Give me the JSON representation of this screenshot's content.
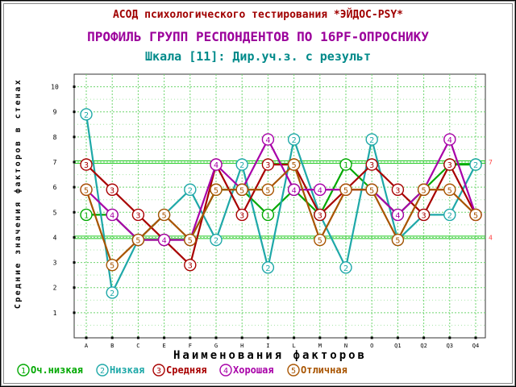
{
  "header": {
    "app_title": "АСОД психологического тестирования *ЭЙДОС-PSY*",
    "chart_title": "ПРОФИЛЬ ГРУПП РЕСПОНДЕНТОВ ПО 16PF-ОПРОСНИКУ",
    "scale_subtitle": "Шкала [11]: Дир.уч.з. с результ"
  },
  "colors": {
    "title": "#a00000",
    "subtitle": "#9b009b",
    "scale": "#008a8a",
    "gridline": "#6fd56f",
    "norm_line": "#22cc22",
    "norm_label": "#ff4040"
  },
  "chart_data": {
    "type": "line",
    "categories": [
      "A",
      "B",
      "C",
      "E",
      "F",
      "G",
      "H",
      "I",
      "L",
      "M",
      "N",
      "O",
      "Q1",
      "Q2",
      "Q3",
      "Q4"
    ],
    "xlabel": "Наименования факторов",
    "ylabel": "Средние значения факторов в стенах",
    "ylim": [
      0,
      10.5
    ],
    "yticks": [
      1,
      2,
      3,
      4,
      5,
      6,
      7,
      8,
      9,
      10
    ],
    "grid": true,
    "reference_lines": [
      {
        "value": 7,
        "label": "7"
      },
      {
        "value": 4,
        "label": "4"
      }
    ],
    "legend_position": "bottom",
    "series": [
      {
        "marker": "1",
        "name": "Оч.низкая",
        "color": "#00a800",
        "values": [
          4.9,
          4.9,
          3.9,
          3.9,
          3.9,
          5.9,
          5.9,
          4.9,
          5.9,
          4.9,
          6.9,
          5.9,
          4.9,
          5.9,
          6.9,
          6.9
        ]
      },
      {
        "marker": "2",
        "name": "Низкая",
        "color": "#1ea8a8",
        "values": [
          8.9,
          1.8,
          3.9,
          4.9,
          5.9,
          3.9,
          6.9,
          2.8,
          7.9,
          4.9,
          2.8,
          7.9,
          3.9,
          4.9,
          4.9,
          6.9
        ]
      },
      {
        "marker": "3",
        "name": "Средняя",
        "color": "#a80000",
        "values": [
          6.9,
          5.9,
          4.9,
          3.9,
          2.9,
          6.9,
          4.9,
          6.9,
          6.9,
          4.9,
          5.9,
          6.9,
          5.9,
          4.9,
          6.9,
          4.9
        ]
      },
      {
        "marker": "4",
        "name": "Хорошая",
        "color": "#a800a8",
        "values": [
          5.9,
          4.9,
          3.9,
          3.9,
          3.9,
          6.9,
          5.9,
          7.9,
          5.9,
          5.9,
          5.9,
          5.9,
          4.9,
          5.9,
          7.9,
          4.9
        ]
      },
      {
        "marker": "5",
        "name": "Отличная",
        "color": "#a85400",
        "values": [
          5.9,
          2.9,
          3.9,
          4.9,
          3.9,
          5.9,
          5.9,
          5.9,
          6.9,
          3.9,
          5.9,
          5.9,
          3.9,
          5.9,
          5.9,
          4.9
        ]
      }
    ]
  }
}
